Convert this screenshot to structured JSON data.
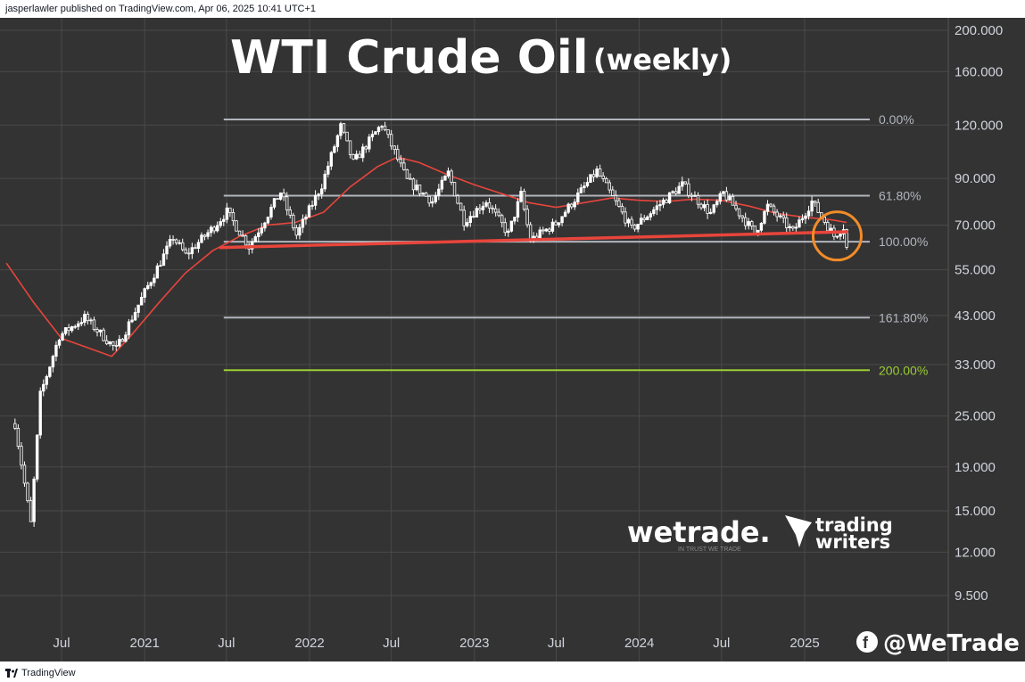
{
  "header": {
    "published_by": "jasperlawler published on TradingView.com, Apr 06, 2025 10:41 UTC+1"
  },
  "footer": {
    "brand": "TradingView"
  },
  "watermarks": {
    "wetrade": "wetrade.",
    "wetrade_tagline": "IN TRUST WE TRADE",
    "trading_writers_line1": "trading",
    "trading_writers_line2": "writers",
    "handle": "@WeTrade"
  },
  "colors": {
    "background": "#333333",
    "grid": "#4a4a4a",
    "candle": "#ffffff",
    "moving_average": "#e8453c",
    "trendline": "#e8453c",
    "fib_gray": "#b2b5be",
    "fib_green": "#9acd32",
    "circle": "#f28c28"
  },
  "chart_data": {
    "type": "candlestick",
    "title": "WTI Crude Oil",
    "subtitle": "(weekly)",
    "scale": "log",
    "y_ticks": [
      200,
      160,
      120,
      90,
      70,
      55,
      43,
      33,
      25,
      19,
      15,
      12,
      9.5
    ],
    "y_tick_labels": [
      "200.000",
      "160.000",
      "120.000",
      "90.000",
      "70.000",
      "55.000",
      "43.000",
      "33.000",
      "25.000",
      "19.000",
      "15.000",
      "12.000",
      "9.500"
    ],
    "x_ticks": [
      {
        "label": "Jul",
        "date": "2020-07-01"
      },
      {
        "label": "2021",
        "date": "2021-01-01"
      },
      {
        "label": "Jul",
        "date": "2021-07-01"
      },
      {
        "label": "2022",
        "date": "2022-01-01"
      },
      {
        "label": "Jul",
        "date": "2022-07-01"
      },
      {
        "label": "2023",
        "date": "2023-01-01"
      },
      {
        "label": "Jul",
        "date": "2023-07-01"
      },
      {
        "label": "2024",
        "date": "2024-01-01"
      },
      {
        "label": "Jul",
        "date": "2024-07-01"
      },
      {
        "label": "2025",
        "date": "2025-01-01"
      }
    ],
    "fib_levels": [
      {
        "label": "0.00%",
        "price": 123.7,
        "color": "gray"
      },
      {
        "label": "61.80%",
        "price": 82.0,
        "color": "gray"
      },
      {
        "label": "100.00%",
        "price": 64.0,
        "color": "gray"
      },
      {
        "label": "161.80%",
        "price": 42.5,
        "color": "gray"
      },
      {
        "label": "200.00%",
        "price": 32.0,
        "color": "green"
      }
    ],
    "fib_start_date": "2021-06-25",
    "trendline": {
      "from": {
        "date": "2021-06-18",
        "price": 62.0
      },
      "to": {
        "date": "2025-04-04",
        "price": 67.5
      }
    },
    "circle": {
      "date": "2025-03-14",
      "price": 66.0
    },
    "price_path": [
      {
        "date": "2020-03-20",
        "price": 24
      },
      {
        "date": "2020-04-24",
        "price": 14
      },
      {
        "date": "2020-05-15",
        "price": 28
      },
      {
        "date": "2020-06-26",
        "price": 38.5
      },
      {
        "date": "2020-08-21",
        "price": 42.5
      },
      {
        "date": "2020-10-30",
        "price": 35.8
      },
      {
        "date": "2020-12-31",
        "price": 48.5
      },
      {
        "date": "2021-03-05",
        "price": 65.5
      },
      {
        "date": "2021-04-02",
        "price": 59.5
      },
      {
        "date": "2021-06-04",
        "price": 69.5
      },
      {
        "date": "2021-07-02",
        "price": 75.2
      },
      {
        "date": "2021-08-20",
        "price": 62.3
      },
      {
        "date": "2021-10-29",
        "price": 83.6
      },
      {
        "date": "2021-12-03",
        "price": 66.3
      },
      {
        "date": "2022-01-28",
        "price": 86.8
      },
      {
        "date": "2022-03-11",
        "price": 119.0
      },
      {
        "date": "2022-04-08",
        "price": 98.0
      },
      {
        "date": "2022-06-10",
        "price": 120.7
      },
      {
        "date": "2022-08-05",
        "price": 89.0
      },
      {
        "date": "2022-09-30",
        "price": 79.5
      },
      {
        "date": "2022-11-04",
        "price": 92.6
      },
      {
        "date": "2022-12-09",
        "price": 71.5
      },
      {
        "date": "2023-01-27",
        "price": 79.7
      },
      {
        "date": "2023-03-17",
        "price": 66.7
      },
      {
        "date": "2023-04-14",
        "price": 82.5
      },
      {
        "date": "2023-05-05",
        "price": 64.5
      },
      {
        "date": "2023-06-30",
        "price": 70.6
      },
      {
        "date": "2023-09-29",
        "price": 93.7
      },
      {
        "date": "2023-12-15",
        "price": 68.5
      },
      {
        "date": "2024-04-05",
        "price": 87.0
      },
      {
        "date": "2024-06-07",
        "price": 74.5
      },
      {
        "date": "2024-07-05",
        "price": 83.2
      },
      {
        "date": "2024-09-13",
        "price": 67.0
      },
      {
        "date": "2024-10-11",
        "price": 77.5
      },
      {
        "date": "2024-12-06",
        "price": 67.5
      },
      {
        "date": "2025-01-17",
        "price": 79.5
      },
      {
        "date": "2025-03-07",
        "price": 66.0
      },
      {
        "date": "2025-03-28",
        "price": 69.4
      },
      {
        "date": "2025-04-04",
        "price": 61.9
      }
    ],
    "moving_average_path": [
      {
        "date": "2020-03-01",
        "price": 57
      },
      {
        "date": "2020-05-01",
        "price": 46
      },
      {
        "date": "2020-07-01",
        "price": 38
      },
      {
        "date": "2020-09-01",
        "price": 36
      },
      {
        "date": "2020-10-20",
        "price": 34.5
      },
      {
        "date": "2020-12-01",
        "price": 38.5
      },
      {
        "date": "2021-02-01",
        "price": 46
      },
      {
        "date": "2021-04-01",
        "price": 54
      },
      {
        "date": "2021-06-01",
        "price": 61
      },
      {
        "date": "2021-08-01",
        "price": 66
      },
      {
        "date": "2021-10-01",
        "price": 70
      },
      {
        "date": "2021-12-01",
        "price": 71
      },
      {
        "date": "2022-02-01",
        "price": 75
      },
      {
        "date": "2022-04-01",
        "price": 86
      },
      {
        "date": "2022-06-01",
        "price": 96
      },
      {
        "date": "2022-07-15",
        "price": 101
      },
      {
        "date": "2022-09-01",
        "price": 98
      },
      {
        "date": "2022-11-01",
        "price": 92
      },
      {
        "date": "2023-01-01",
        "price": 87
      },
      {
        "date": "2023-03-01",
        "price": 83
      },
      {
        "date": "2023-05-01",
        "price": 79
      },
      {
        "date": "2023-07-01",
        "price": 77
      },
      {
        "date": "2023-09-01",
        "price": 79
      },
      {
        "date": "2023-11-01",
        "price": 81
      },
      {
        "date": "2024-01-01",
        "price": 80
      },
      {
        "date": "2024-03-01",
        "price": 79.5
      },
      {
        "date": "2024-05-01",
        "price": 80.5
      },
      {
        "date": "2024-07-01",
        "price": 80
      },
      {
        "date": "2024-09-01",
        "price": 77.5
      },
      {
        "date": "2024-11-01",
        "price": 74.5
      },
      {
        "date": "2025-01-01",
        "price": 73
      },
      {
        "date": "2025-03-01",
        "price": 72
      },
      {
        "date": "2025-04-04",
        "price": 71
      }
    ]
  }
}
